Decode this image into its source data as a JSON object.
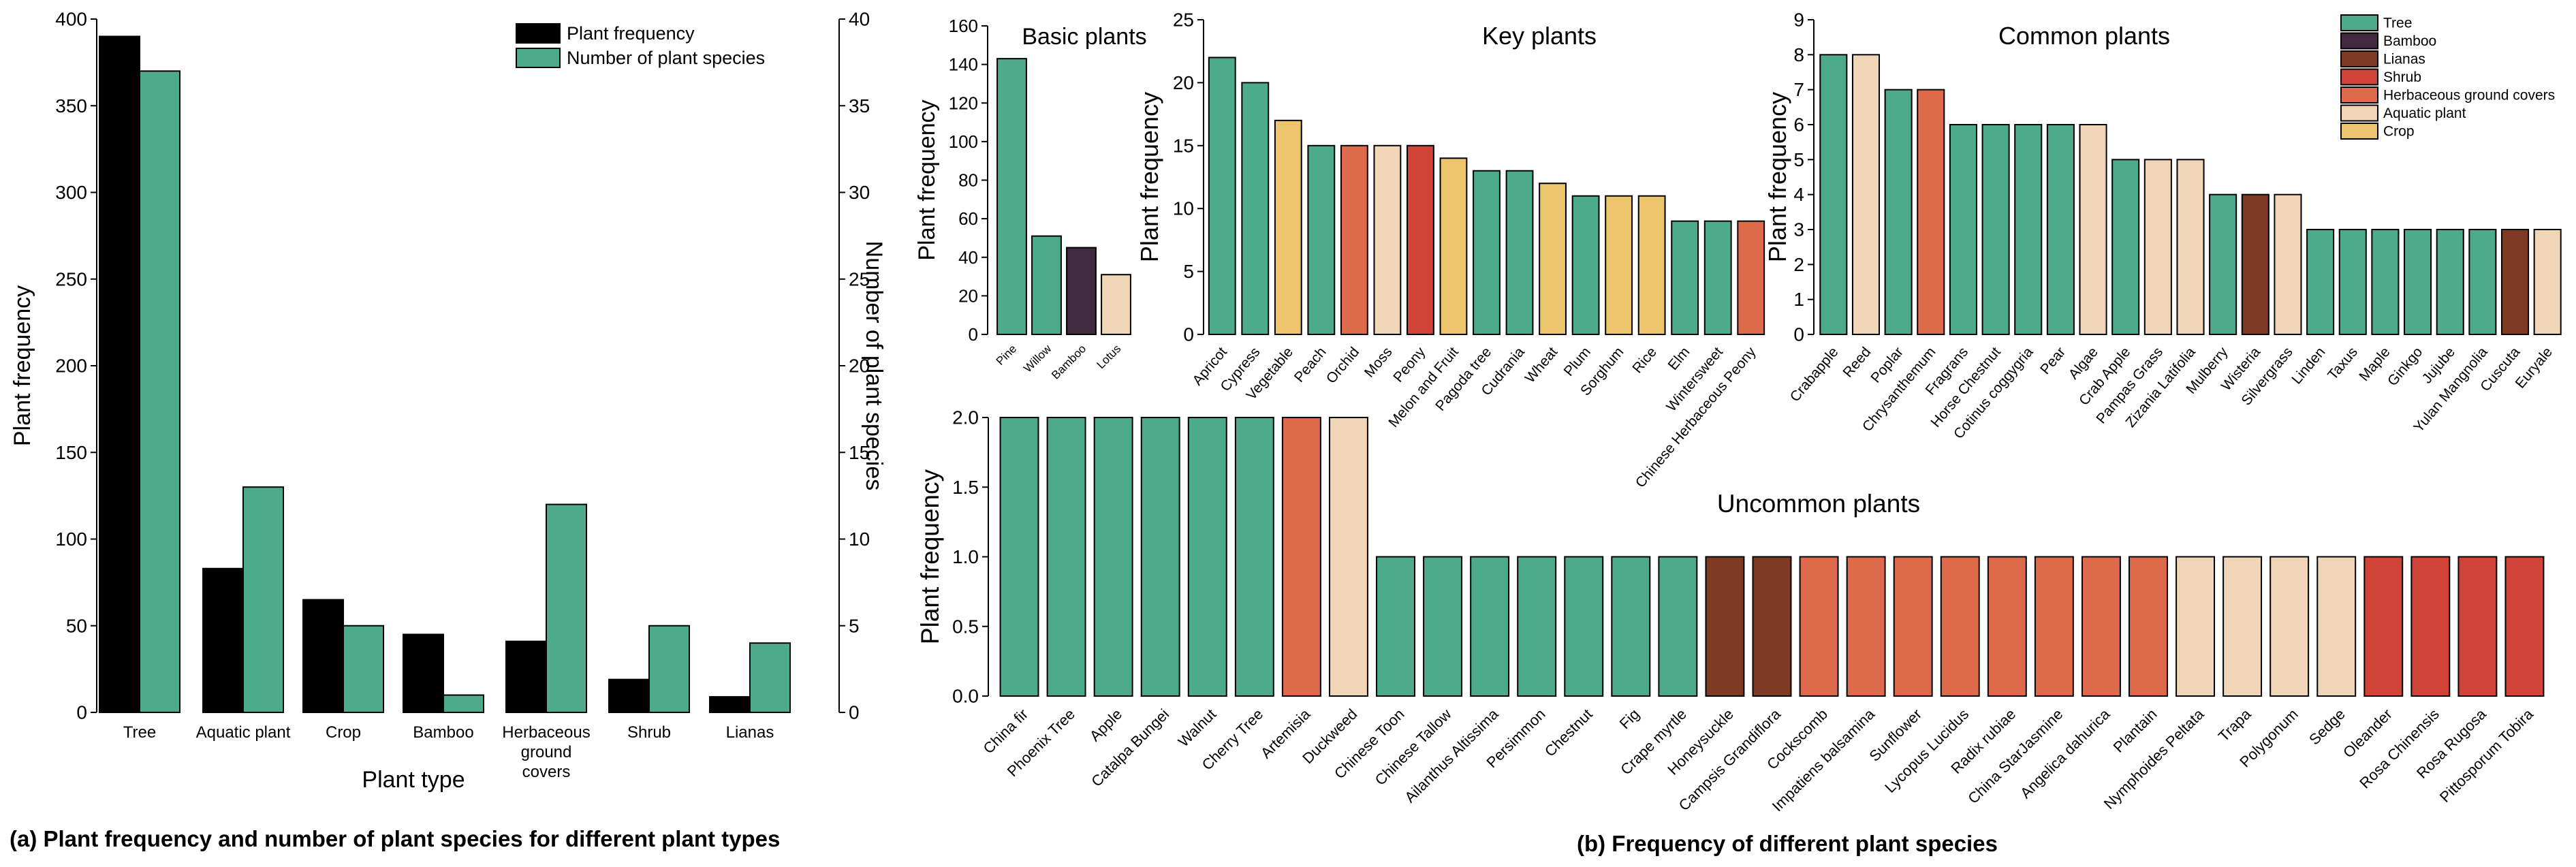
{
  "colors": {
    "tree": "#4daa8b",
    "bamboo": "#3f2a3f",
    "lianas": "#7e3a22",
    "shrub": "#cf4436",
    "herbaceous": "#de6a4c",
    "aquatic": "#f0d6b6",
    "crop": "#ebc46b",
    "black": "#000000"
  },
  "captions": {
    "a": "(a) Plant frequency and number of plant species for different plant types",
    "b": "(b) Frequency of different plant species"
  },
  "chart_data": [
    {
      "id": "a",
      "type": "bar",
      "xlabel": "Plant type",
      "ylabel": "Plant frequency",
      "y2label": "Number of plant species",
      "categories": [
        "Tree",
        "Aquatic plant",
        "Crop",
        "Bamboo",
        "Herbaceous ground covers",
        "Shrub",
        "Lianas"
      ],
      "series": [
        {
          "name": "Plant frequency",
          "axis": "left",
          "color": "black",
          "values": [
            390,
            83,
            65,
            45,
            41,
            19,
            9
          ]
        },
        {
          "name": "Number of plant species",
          "axis": "right",
          "color": "tree",
          "values": [
            37,
            13,
            5,
            1,
            12,
            5,
            4
          ]
        }
      ],
      "ylim": [
        0,
        400
      ],
      "yticks": [
        0,
        50,
        100,
        150,
        200,
        250,
        300,
        350,
        400
      ],
      "y2lim": [
        0,
        40
      ],
      "y2ticks": [
        0,
        5,
        10,
        15,
        20,
        25,
        30,
        35,
        40
      ],
      "legend": "top-right"
    },
    {
      "id": "basic",
      "type": "bar",
      "title": "Basic plants",
      "ylabel": "Plant frequency",
      "categories": [
        "Pine",
        "Willow",
        "Bamboo",
        "Lotus"
      ],
      "values": [
        143,
        51,
        45,
        31
      ],
      "colors": [
        "tree",
        "tree",
        "bamboo",
        "aquatic"
      ],
      "ylim": [
        0,
        160
      ],
      "yticks": [
        0,
        20,
        40,
        60,
        80,
        100,
        120,
        140,
        160
      ]
    },
    {
      "id": "key",
      "type": "bar",
      "title": "Key plants",
      "ylabel": "Plant frequency",
      "categories": [
        "Apricot",
        "Cypress",
        "Vegetable",
        "Peach",
        "Orchid",
        "Moss",
        "Peony",
        "Melon and Fruit",
        "Pagoda tree",
        "Cudrania",
        "Wheat",
        "Plum",
        "Sorghum",
        "Rice",
        "Elm",
        "Wintersweet",
        "Chinese Herbaceous Peony"
      ],
      "values": [
        22,
        20,
        17,
        15,
        15,
        15,
        15,
        14,
        13,
        13,
        12,
        11,
        11,
        11,
        9,
        9,
        9
      ],
      "colors": [
        "tree",
        "tree",
        "crop",
        "tree",
        "herbaceous",
        "aquatic",
        "shrub",
        "crop",
        "tree",
        "tree",
        "crop",
        "tree",
        "crop",
        "crop",
        "tree",
        "tree",
        "herbaceous"
      ],
      "ylim": [
        0,
        25
      ],
      "yticks": [
        0,
        5,
        10,
        15,
        20,
        25
      ]
    },
    {
      "id": "common",
      "type": "bar",
      "title": "Common plants",
      "ylabel": "Plant frequency",
      "categories": [
        "Crabapple",
        "Reed",
        "Poplar",
        "Chrysanthemum",
        "Fragrans",
        "Horse Chestnut",
        "Cotinus coggygria",
        "Pear",
        "Algae",
        "Crab Apple",
        "Pampas Grass",
        "Zizania Latifolia",
        "Mulberry",
        "Wisteria",
        "Silvergrass",
        "Linden",
        "Taxus",
        "Maple",
        "Ginkgo",
        "Jujube",
        "Yulan Mangnolia",
        "Cuscuta",
        "Euryale"
      ],
      "values": [
        8,
        8,
        7,
        7,
        6,
        6,
        6,
        6,
        6,
        5,
        5,
        5,
        4,
        4,
        4,
        3,
        3,
        3,
        3,
        3,
        3,
        3,
        3
      ],
      "colors": [
        "tree",
        "aquatic",
        "tree",
        "herbaceous",
        "tree",
        "tree",
        "tree",
        "tree",
        "aquatic",
        "tree",
        "aquatic",
        "aquatic",
        "tree",
        "lianas",
        "aquatic",
        "tree",
        "tree",
        "tree",
        "tree",
        "tree",
        "tree",
        "lianas",
        "aquatic"
      ],
      "ylim": [
        0,
        9
      ],
      "yticks": [
        0,
        1,
        2,
        3,
        4,
        5,
        6,
        7,
        8,
        9
      ],
      "legend": {
        "position": "top-right",
        "entries": [
          {
            "label": "Tree",
            "color": "tree"
          },
          {
            "label": "Bamboo",
            "color": "bamboo"
          },
          {
            "label": "Lianas",
            "color": "lianas"
          },
          {
            "label": "Shrub",
            "color": "shrub"
          },
          {
            "label": "Herbaceous ground covers",
            "color": "herbaceous"
          },
          {
            "label": "Aquatic plant",
            "color": "aquatic"
          },
          {
            "label": "Crop",
            "color": "crop"
          }
        ]
      }
    },
    {
      "id": "uncommon",
      "type": "bar",
      "title": "Uncommon plants",
      "ylabel": "Plant frequency",
      "categories": [
        "China fir",
        "Phoenix Tree",
        "Apple",
        "Catalpa Bungei",
        "Walnut",
        "Cherry Tree",
        "Artemisia",
        "Duckweed",
        "Chinese Toon",
        "Chinese Tallow",
        "Ailanthus Altissima",
        "Persimmon",
        "Chestnut",
        "Fig",
        "Crape myrtle",
        "Honeysuckle",
        "Campsis Grandiflora",
        "Cockscomb",
        "Impatiens balsamina",
        "Sunflower",
        "Lycopus Lucidus",
        "Radix rubiae",
        "China StarJasmine",
        "Angelica dahurica",
        "Plantain",
        "Nymphoides Peltata",
        "Trapa",
        "Polygonum",
        "Sedge",
        "Oleander",
        "Rosa Chinensis",
        "Rosa Rugosa",
        "Pittosporum Tobira"
      ],
      "values": [
        2,
        2,
        2,
        2,
        2,
        2,
        2,
        2,
        1,
        1,
        1,
        1,
        1,
        1,
        1,
        1,
        1,
        1,
        1,
        1,
        1,
        1,
        1,
        1,
        1,
        1,
        1,
        1,
        1,
        1,
        1,
        1,
        1
      ],
      "colors": [
        "tree",
        "tree",
        "tree",
        "tree",
        "tree",
        "tree",
        "herbaceous",
        "aquatic",
        "tree",
        "tree",
        "tree",
        "tree",
        "tree",
        "tree",
        "tree",
        "lianas",
        "lianas",
        "herbaceous",
        "herbaceous",
        "herbaceous",
        "herbaceous",
        "herbaceous",
        "herbaceous",
        "herbaceous",
        "herbaceous",
        "aquatic",
        "aquatic",
        "aquatic",
        "aquatic",
        "shrub",
        "shrub",
        "shrub",
        "shrub"
      ],
      "ylim": [
        0,
        2.0
      ],
      "yticks": [
        0.0,
        0.5,
        1.0,
        1.5,
        2.0
      ]
    }
  ]
}
